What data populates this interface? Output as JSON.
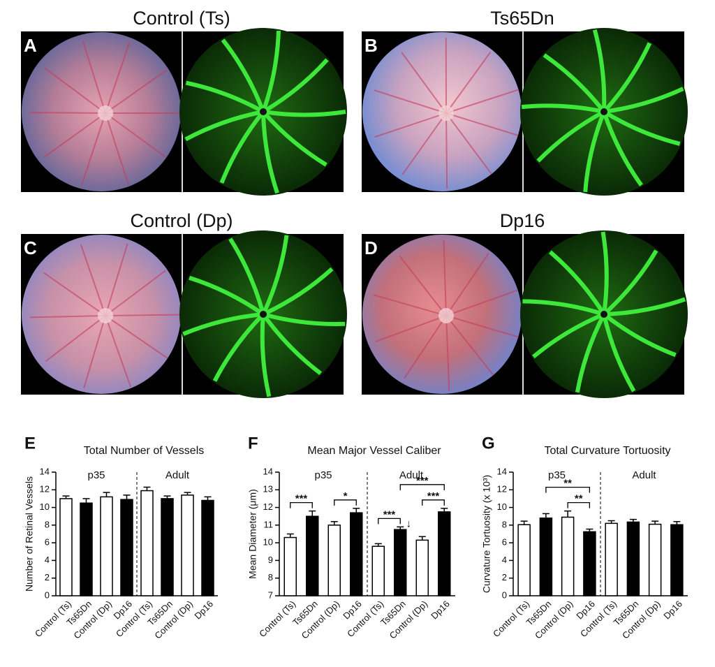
{
  "panels": [
    {
      "letter": "A",
      "title": "Control (Ts)"
    },
    {
      "letter": "B",
      "title": "Ts65Dn"
    },
    {
      "letter": "C",
      "title": "Control (Dp)"
    },
    {
      "letter": "D",
      "title": "Dp16"
    }
  ],
  "chart_data": [
    {
      "type": "bar",
      "letter": "E",
      "title": "Total Number of Vessels",
      "ylabel": "Number of Retinal Vessels",
      "groups": [
        "p35",
        "Adult"
      ],
      "categories": [
        "Control (Ts)",
        "Ts65Dn",
        "Control (Dp)",
        "Dp16",
        "Control (Ts)",
        "Ts65Dn",
        "Control (Dp)",
        "Dp16"
      ],
      "values": [
        11.0,
        10.5,
        11.2,
        10.9,
        11.9,
        11.0,
        11.4,
        10.8
      ],
      "errors": [
        0.3,
        0.5,
        0.5,
        0.5,
        0.4,
        0.3,
        0.3,
        0.4
      ],
      "colors": [
        "#ffffff",
        "#000000",
        "#ffffff",
        "#000000",
        "#ffffff",
        "#000000",
        "#ffffff",
        "#000000"
      ],
      "ylim": [
        0,
        14
      ],
      "yticks": [
        0,
        2,
        4,
        6,
        8,
        10,
        12,
        14
      ],
      "annotations": []
    },
    {
      "type": "bar",
      "letter": "F",
      "title": "Mean Major Vessel Caliber",
      "ylabel": "Mean Diameter (μm)",
      "groups": [
        "p35",
        "Adult"
      ],
      "categories": [
        "Control (Ts)",
        "Ts65Dn",
        "Control (Dp)",
        "Dp16",
        "Control (Ts)",
        "Ts65Dn",
        "Control (Dp)",
        "Dp16"
      ],
      "values": [
        10.3,
        11.5,
        11.0,
        11.7,
        9.8,
        10.75,
        10.15,
        11.75
      ],
      "errors": [
        0.2,
        0.3,
        0.2,
        0.25,
        0.15,
        0.15,
        0.2,
        0.2
      ],
      "colors": [
        "#ffffff",
        "#000000",
        "#ffffff",
        "#000000",
        "#ffffff",
        "#000000",
        "#ffffff",
        "#000000"
      ],
      "ylim": [
        7,
        14
      ],
      "yticks": [
        7,
        8,
        9,
        10,
        11,
        12,
        13,
        14
      ],
      "annotations": [
        {
          "label": "***",
          "from": 0,
          "to": 1
        },
        {
          "label": "*",
          "from": 2,
          "to": 3
        },
        {
          "label": "***",
          "from": 4,
          "to": 5
        },
        {
          "label": "***",
          "from": 6,
          "to": 7
        },
        {
          "label": "***",
          "from": 5,
          "to": 7
        }
      ],
      "markers": [
        {
          "label": "↓",
          "bar": 5
        }
      ]
    },
    {
      "type": "bar",
      "letter": "G",
      "title": "Total Curvature Tortuosity",
      "ylabel": "Curvature Tortuosity (x 10³)",
      "groups": [
        "p35",
        "Adult"
      ],
      "categories": [
        "Control (Ts)",
        "Ts65Dn",
        "Control (Dp)",
        "Dp16",
        "Control (Ts)",
        "Ts65Dn",
        "Control (Dp)",
        "Dp16"
      ],
      "values": [
        8.05,
        8.8,
        8.9,
        7.25,
        8.2,
        8.35,
        8.1,
        8.05
      ],
      "errors": [
        0.4,
        0.5,
        0.7,
        0.3,
        0.3,
        0.3,
        0.35,
        0.35
      ],
      "colors": [
        "#ffffff",
        "#000000",
        "#ffffff",
        "#000000",
        "#ffffff",
        "#000000",
        "#ffffff",
        "#000000"
      ],
      "ylim": [
        0,
        14
      ],
      "yticks": [
        0,
        2,
        4,
        6,
        8,
        10,
        12,
        14
      ],
      "annotations": [
        {
          "label": "**",
          "from": 2,
          "to": 3
        },
        {
          "label": "**",
          "from": 1,
          "to": 3
        }
      ]
    }
  ]
}
